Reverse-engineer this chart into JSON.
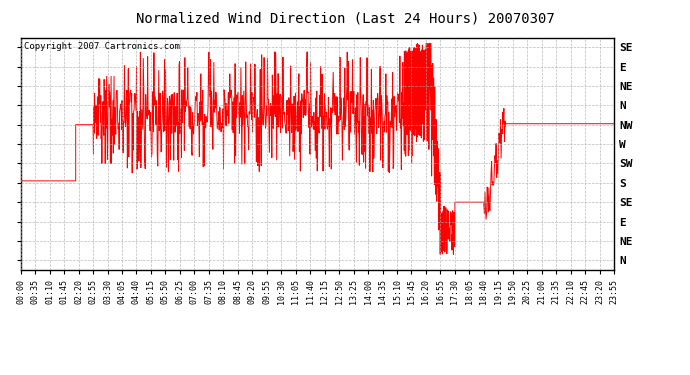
{
  "title": "Normalized Wind Direction (Last 24 Hours) 20070307",
  "copyright": "Copyright 2007 Cartronics.com",
  "line_color": "#ff0000",
  "background_color": "#ffffff",
  "plot_bg_color": "#ffffff",
  "grid_color": "#aaaaaa",
  "y_labels": [
    "SE",
    "E",
    "NE",
    "N",
    "NW",
    "W",
    "SW",
    "S",
    "SE",
    "E",
    "NE",
    "N"
  ],
  "ylim": [
    -0.5,
    11.5
  ],
  "x_tick_labels": [
    "00:00",
    "00:35",
    "01:10",
    "01:45",
    "02:20",
    "02:55",
    "03:30",
    "04:05",
    "04:40",
    "05:15",
    "05:50",
    "06:25",
    "07:00",
    "07:35",
    "08:10",
    "08:45",
    "09:20",
    "09:55",
    "10:30",
    "11:05",
    "11:40",
    "12:15",
    "12:50",
    "13:25",
    "14:00",
    "14:35",
    "15:10",
    "15:45",
    "16:20",
    "16:55",
    "17:30",
    "18:05",
    "18:40",
    "19:15",
    "19:50",
    "20:25",
    "21:00",
    "21:35",
    "22:10",
    "22:45",
    "23:20",
    "23:55"
  ]
}
